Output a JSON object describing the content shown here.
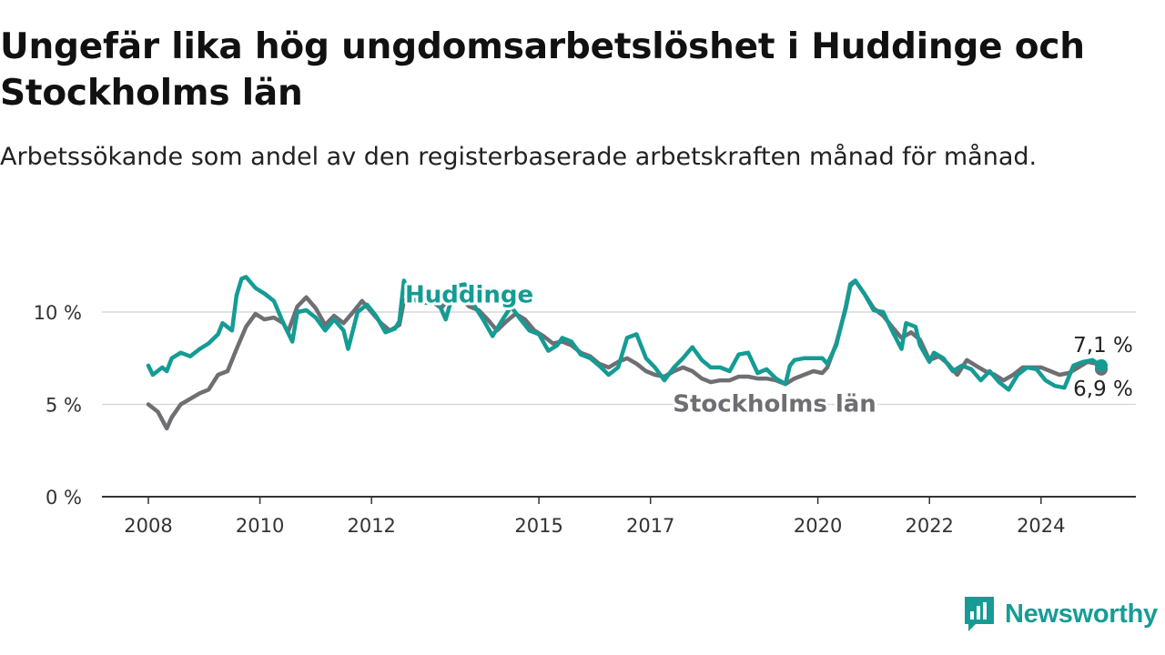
{
  "title": "Ungefär lika hög ungdomsarbetslöshet i Huddinge och Stockholms län",
  "subtitle": "Arbetssökande som andel av den registerbaserade arbetskraften månad för månad.",
  "brand": {
    "name": "Newsworthy",
    "icon": "newsworthy-logo-icon",
    "color": "#179c95"
  },
  "colors": {
    "huddinge": "#149c94",
    "stockholm": "#6f6e73",
    "grid": "#d9d9d9",
    "axis": "#333333"
  },
  "chart_data": {
    "type": "line",
    "title": "Ungefär lika hög ungdomsarbetslöshet i Huddinge och Stockholms län",
    "xlabel": "",
    "ylabel": "",
    "xlim": [
      2008.0,
      2025.75
    ],
    "ylim": [
      0,
      12.5
    ],
    "x_ticks": [
      2008,
      2010,
      2012,
      2015,
      2017,
      2020,
      2022,
      2024
    ],
    "x_tick_labels": [
      "2008",
      "2010",
      "2012",
      "2015",
      "2017",
      "2020",
      "2022",
      "2024"
    ],
    "y_ticks": [
      0,
      5,
      10
    ],
    "y_tick_labels": [
      "0 %",
      "5 %",
      "10 %"
    ],
    "grid": true,
    "legend": "inline labels",
    "series": [
      {
        "name": "Huddinge",
        "color": "#149c94",
        "end_label": "7,1 %",
        "points": [
          [
            2008.0,
            7.1
          ],
          [
            2008.08,
            6.6
          ],
          [
            2008.25,
            7.0
          ],
          [
            2008.33,
            6.8
          ],
          [
            2008.42,
            7.5
          ],
          [
            2008.58,
            7.8
          ],
          [
            2008.75,
            7.6
          ],
          [
            2008.92,
            8.0
          ],
          [
            2009.08,
            8.3
          ],
          [
            2009.25,
            8.8
          ],
          [
            2009.33,
            9.4
          ],
          [
            2009.5,
            9.0
          ],
          [
            2009.58,
            10.9
          ],
          [
            2009.67,
            11.8
          ],
          [
            2009.75,
            11.9
          ],
          [
            2009.92,
            11.3
          ],
          [
            2010.08,
            11.0
          ],
          [
            2010.25,
            10.6
          ],
          [
            2010.42,
            9.4
          ],
          [
            2010.58,
            8.4
          ],
          [
            2010.67,
            10.0
          ],
          [
            2010.83,
            10.1
          ],
          [
            2011.0,
            9.7
          ],
          [
            2011.17,
            9.0
          ],
          [
            2011.33,
            9.6
          ],
          [
            2011.5,
            9.0
          ],
          [
            2011.58,
            8.0
          ],
          [
            2011.75,
            10.0
          ],
          [
            2011.92,
            10.4
          ],
          [
            2012.08,
            9.8
          ],
          [
            2012.25,
            8.9
          ],
          [
            2012.42,
            9.1
          ],
          [
            2012.5,
            9.5
          ],
          [
            2012.58,
            11.7
          ],
          [
            2012.67,
            11.1
          ],
          [
            2012.83,
            10.5
          ],
          [
            2013.0,
            10.5
          ],
          [
            2013.17,
            10.7
          ],
          [
            2013.33,
            9.6
          ],
          [
            2013.5,
            11.4
          ],
          [
            2013.67,
            11.5
          ],
          [
            2013.83,
            10.4
          ],
          [
            2014.0,
            9.6
          ],
          [
            2014.17,
            8.7
          ],
          [
            2014.33,
            9.5
          ],
          [
            2014.5,
            10.3
          ],
          [
            2014.67,
            9.6
          ],
          [
            2014.83,
            9.0
          ],
          [
            2015.0,
            8.8
          ],
          [
            2015.17,
            7.9
          ],
          [
            2015.33,
            8.2
          ],
          [
            2015.42,
            8.6
          ],
          [
            2015.58,
            8.4
          ],
          [
            2015.75,
            7.7
          ],
          [
            2015.92,
            7.5
          ],
          [
            2016.08,
            7.1
          ],
          [
            2016.25,
            6.6
          ],
          [
            2016.42,
            7.0
          ],
          [
            2016.58,
            8.6
          ],
          [
            2016.75,
            8.8
          ],
          [
            2016.92,
            7.5
          ],
          [
            2017.08,
            7.0
          ],
          [
            2017.25,
            6.3
          ],
          [
            2017.42,
            7.0
          ],
          [
            2017.58,
            7.5
          ],
          [
            2017.75,
            8.1
          ],
          [
            2017.92,
            7.4
          ],
          [
            2018.08,
            7.0
          ],
          [
            2018.25,
            7.0
          ],
          [
            2018.42,
            6.8
          ],
          [
            2018.58,
            7.7
          ],
          [
            2018.75,
            7.8
          ],
          [
            2018.92,
            6.7
          ],
          [
            2019.08,
            6.9
          ],
          [
            2019.25,
            6.4
          ],
          [
            2019.42,
            6.1
          ],
          [
            2019.5,
            7.1
          ],
          [
            2019.58,
            7.4
          ],
          [
            2019.75,
            7.5
          ],
          [
            2019.92,
            7.5
          ],
          [
            2020.08,
            7.5
          ],
          [
            2020.17,
            7.2
          ],
          [
            2020.33,
            8.2
          ],
          [
            2020.5,
            10.3
          ],
          [
            2020.58,
            11.5
          ],
          [
            2020.67,
            11.7
          ],
          [
            2020.83,
            11.0
          ],
          [
            2021.0,
            10.1
          ],
          [
            2021.17,
            10.0
          ],
          [
            2021.33,
            9.0
          ],
          [
            2021.5,
            8.0
          ],
          [
            2021.58,
            9.4
          ],
          [
            2021.75,
            9.2
          ],
          [
            2021.83,
            8.2
          ],
          [
            2022.0,
            7.3
          ],
          [
            2022.08,
            7.8
          ],
          [
            2022.25,
            7.5
          ],
          [
            2022.42,
            6.8
          ],
          [
            2022.58,
            7.1
          ],
          [
            2022.75,
            6.9
          ],
          [
            2022.92,
            6.3
          ],
          [
            2023.08,
            6.8
          ],
          [
            2023.25,
            6.2
          ],
          [
            2023.42,
            5.8
          ],
          [
            2023.58,
            6.6
          ],
          [
            2023.75,
            7.0
          ],
          [
            2023.92,
            6.9
          ],
          [
            2024.08,
            6.3
          ],
          [
            2024.25,
            6.0
          ],
          [
            2024.42,
            5.9
          ],
          [
            2024.58,
            7.1
          ],
          [
            2024.75,
            7.3
          ],
          [
            2024.92,
            7.4
          ],
          [
            2025.08,
            7.1
          ]
        ]
      },
      {
        "name": "Stockholms län",
        "color": "#6f6e73",
        "end_label": "6,9 %",
        "points": [
          [
            2008.0,
            5.0
          ],
          [
            2008.17,
            4.6
          ],
          [
            2008.33,
            3.7
          ],
          [
            2008.42,
            4.3
          ],
          [
            2008.58,
            5.0
          ],
          [
            2008.75,
            5.3
          ],
          [
            2008.92,
            5.6
          ],
          [
            2009.08,
            5.8
          ],
          [
            2009.25,
            6.6
          ],
          [
            2009.42,
            6.8
          ],
          [
            2009.58,
            8.0
          ],
          [
            2009.75,
            9.2
          ],
          [
            2009.92,
            9.9
          ],
          [
            2010.08,
            9.6
          ],
          [
            2010.25,
            9.7
          ],
          [
            2010.42,
            9.4
          ],
          [
            2010.5,
            8.9
          ],
          [
            2010.67,
            10.3
          ],
          [
            2010.83,
            10.8
          ],
          [
            2011.0,
            10.2
          ],
          [
            2011.17,
            9.3
          ],
          [
            2011.33,
            9.8
          ],
          [
            2011.5,
            9.4
          ],
          [
            2011.67,
            10.0
          ],
          [
            2011.83,
            10.6
          ],
          [
            2012.0,
            10.0
          ],
          [
            2012.17,
            9.4
          ],
          [
            2012.33,
            9.0
          ],
          [
            2012.5,
            9.3
          ],
          [
            2012.58,
            10.6
          ],
          [
            2012.75,
            11.0
          ],
          [
            2012.92,
            10.5
          ],
          [
            2013.08,
            10.6
          ],
          [
            2013.25,
            10.2
          ],
          [
            2013.42,
            10.9
          ],
          [
            2013.58,
            10.8
          ],
          [
            2013.75,
            10.3
          ],
          [
            2013.92,
            10.1
          ],
          [
            2014.08,
            9.6
          ],
          [
            2014.25,
            9.0
          ],
          [
            2014.42,
            9.5
          ],
          [
            2014.58,
            9.9
          ],
          [
            2014.75,
            9.6
          ],
          [
            2014.92,
            9.0
          ],
          [
            2015.08,
            8.7
          ],
          [
            2015.25,
            8.3
          ],
          [
            2015.42,
            8.4
          ],
          [
            2015.58,
            8.2
          ],
          [
            2015.75,
            7.8
          ],
          [
            2015.92,
            7.6
          ],
          [
            2016.08,
            7.2
          ],
          [
            2016.25,
            7.0
          ],
          [
            2016.42,
            7.3
          ],
          [
            2016.58,
            7.5
          ],
          [
            2016.75,
            7.2
          ],
          [
            2016.92,
            6.8
          ],
          [
            2017.08,
            6.6
          ],
          [
            2017.25,
            6.5
          ],
          [
            2017.42,
            6.8
          ],
          [
            2017.58,
            7.0
          ],
          [
            2017.75,
            6.8
          ],
          [
            2017.92,
            6.4
          ],
          [
            2018.08,
            6.2
          ],
          [
            2018.25,
            6.3
          ],
          [
            2018.42,
            6.3
          ],
          [
            2018.58,
            6.5
          ],
          [
            2018.75,
            6.5
          ],
          [
            2018.92,
            6.4
          ],
          [
            2019.08,
            6.4
          ],
          [
            2019.25,
            6.3
          ],
          [
            2019.42,
            6.1
          ],
          [
            2019.58,
            6.4
          ],
          [
            2019.75,
            6.6
          ],
          [
            2019.92,
            6.8
          ],
          [
            2020.08,
            6.7
          ],
          [
            2020.17,
            7.0
          ],
          [
            2020.33,
            8.3
          ],
          [
            2020.5,
            10.2
          ],
          [
            2020.58,
            11.4
          ],
          [
            2020.67,
            11.7
          ],
          [
            2020.83,
            11.0
          ],
          [
            2021.0,
            10.2
          ],
          [
            2021.17,
            9.8
          ],
          [
            2021.33,
            9.2
          ],
          [
            2021.5,
            8.6
          ],
          [
            2021.67,
            8.9
          ],
          [
            2021.83,
            8.5
          ],
          [
            2022.0,
            7.4
          ],
          [
            2022.17,
            7.6
          ],
          [
            2022.33,
            7.2
          ],
          [
            2022.5,
            6.6
          ],
          [
            2022.67,
            7.4
          ],
          [
            2022.83,
            7.1
          ],
          [
            2023.0,
            6.8
          ],
          [
            2023.17,
            6.6
          ],
          [
            2023.33,
            6.3
          ],
          [
            2023.5,
            6.6
          ],
          [
            2023.67,
            7.0
          ],
          [
            2023.83,
            7.0
          ],
          [
            2024.0,
            7.0
          ],
          [
            2024.17,
            6.8
          ],
          [
            2024.33,
            6.6
          ],
          [
            2024.5,
            6.7
          ],
          [
            2024.67,
            7.0
          ],
          [
            2024.83,
            7.3
          ],
          [
            2025.0,
            7.2
          ],
          [
            2025.08,
            6.9
          ]
        ]
      }
    ],
    "inline_labels": [
      {
        "text": "Huddinge",
        "x": 2012.6,
        "y": 11.0,
        "series": "Huddinge"
      },
      {
        "text": "Stockholms län",
        "x": 2017.4,
        "y": 5.1,
        "series": "Stockholms län"
      }
    ]
  }
}
